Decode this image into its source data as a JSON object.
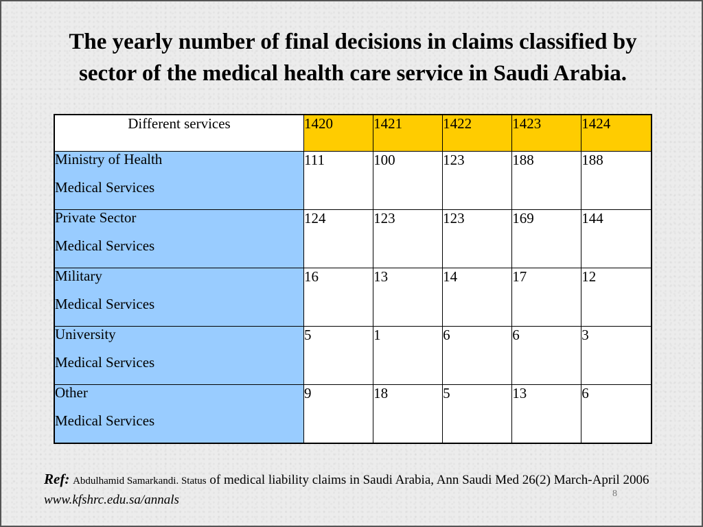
{
  "title": {
    "line1": "The yearly number of final decisions in claims classified by",
    "line2": "sector of the  medical health care service in Saudi Arabia."
  },
  "table": {
    "corner_label": "Different services",
    "years": [
      "1420",
      "1421",
      "1422",
      "1423",
      "1424"
    ],
    "rows": [
      {
        "line1": "Ministry of Health",
        "line2": "Medical Services",
        "values": [
          "111",
          "100",
          "123",
          "188",
          "188"
        ]
      },
      {
        "line1": "Private Sector",
        "line2": "Medical Services",
        "values": [
          "124",
          "123",
          "123",
          "169",
          "144"
        ]
      },
      {
        "line1": "Military",
        "line2": "Medical Services",
        "values": [
          "16",
          "13",
          "14",
          "17",
          "12"
        ]
      },
      {
        "line1": "University",
        "line2": "Medical Services",
        "values": [
          "5",
          "1",
          "6",
          "6",
          "3"
        ]
      },
      {
        "line1": "Other",
        "line2": "Medical Services",
        "values": [
          "9",
          "18",
          "5",
          "13",
          "6"
        ]
      }
    ]
  },
  "reference": {
    "label": "Ref:",
    "author": "Abdulhamid Samarkandi. Status",
    "text": " of medical liability claims in Saudi Arabia, Ann Saudi Med 26(2) March-April 2006 ",
    "url": "www.kfshrc.edu.sa/annals"
  },
  "page_number": "8",
  "colors": {
    "header_year_bg": "#ffcc00",
    "service_bg": "#99ccff",
    "value_bg": "#ffffff"
  }
}
